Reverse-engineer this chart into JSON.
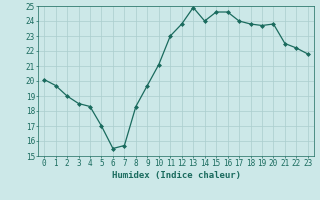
{
  "x": [
    0,
    1,
    2,
    3,
    4,
    5,
    6,
    7,
    8,
    9,
    10,
    11,
    12,
    13,
    14,
    15,
    16,
    17,
    18,
    19,
    20,
    21,
    22,
    23
  ],
  "y": [
    20.1,
    19.7,
    19.0,
    18.5,
    18.3,
    17.0,
    15.5,
    15.7,
    18.3,
    19.7,
    21.1,
    23.0,
    23.8,
    24.9,
    24.0,
    24.6,
    24.6,
    24.0,
    23.8,
    23.7,
    23.8,
    22.5,
    22.2,
    21.8
  ],
  "line_color": "#1a6b5e",
  "marker": "D",
  "markersize": 2.0,
  "linewidth": 0.9,
  "xlabel": "Humidex (Indice chaleur)",
  "xlabel_fontsize": 6.5,
  "ylim": [
    15,
    25
  ],
  "xlim": [
    -0.5,
    23.5
  ],
  "yticks": [
    15,
    16,
    17,
    18,
    19,
    20,
    21,
    22,
    23,
    24,
    25
  ],
  "xticks": [
    0,
    1,
    2,
    3,
    4,
    5,
    6,
    7,
    8,
    9,
    10,
    11,
    12,
    13,
    14,
    15,
    16,
    17,
    18,
    19,
    20,
    21,
    22,
    23
  ],
  "bg_color": "#cce8e8",
  "grid_color": "#aacece",
  "tick_color": "#1a6b5e",
  "tick_fontsize": 5.5,
  "spine_color": "#1a6b5e"
}
